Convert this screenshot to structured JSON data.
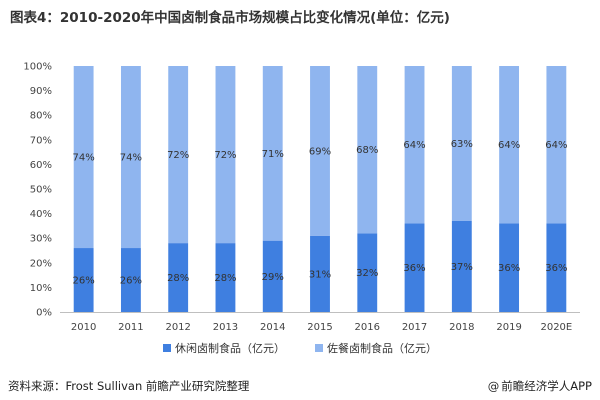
{
  "title": "图表4：2010-2020年中国卤制食品市场规模占比变化情况(单位：亿元)",
  "source": "资料来源：Frost Sullivan 前瞻产业研究院整理",
  "brand": "前瞻经济学人APP",
  "brand_icon": "at-icon",
  "chart_data": {
    "type": "bar",
    "stacked": true,
    "title": "图表4：2010-2020年中国卤制食品市场规模占比变化情况(单位：亿元)",
    "categories": [
      "2010",
      "2011",
      "2012",
      "2013",
      "2014",
      "2015",
      "2016",
      "2017",
      "2018",
      "2019",
      "2020E"
    ],
    "series": [
      {
        "name": "休闲卤制食品（亿元）",
        "color": "#3f7fe0",
        "values": [
          26,
          26,
          28,
          28,
          29,
          31,
          32,
          36,
          37,
          36,
          36
        ],
        "labels": [
          "26%",
          "26%",
          "28%",
          "28%",
          "29%",
          "31%",
          "32%",
          "36%",
          "37%",
          "36%",
          "36%"
        ]
      },
      {
        "name": "佐餐卤制食品（亿元）",
        "color": "#8fb5ef",
        "values": [
          74,
          74,
          72,
          72,
          71,
          69,
          68,
          64,
          63,
          64,
          64
        ],
        "labels": [
          "74%",
          "74%",
          "72%",
          "72%",
          "71%",
          "69%",
          "68%",
          "64%",
          "63%",
          "64%",
          "64%"
        ]
      }
    ],
    "yticks": [
      "0%",
      "10%",
      "20%",
      "30%",
      "40%",
      "50%",
      "60%",
      "70%",
      "80%",
      "90%",
      "100%"
    ],
    "ylim": [
      0,
      100
    ],
    "xlabel": "",
    "ylabel": "",
    "legend_position": "bottom"
  }
}
